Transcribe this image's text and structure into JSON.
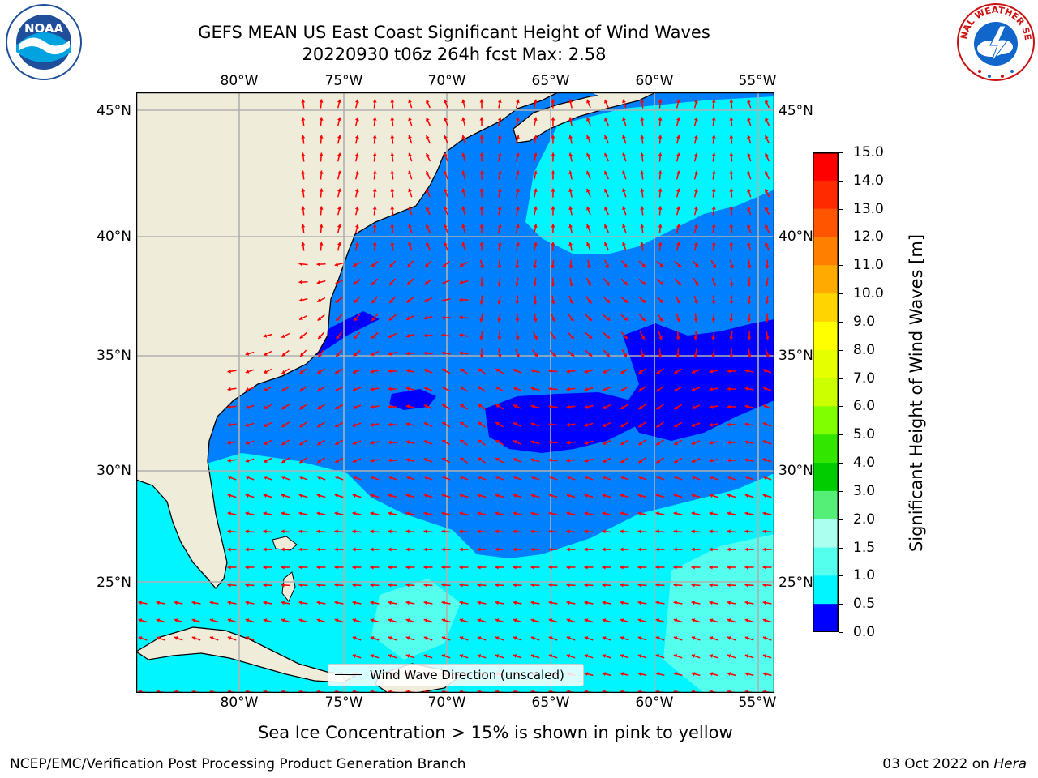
{
  "title": {
    "line1": "GEFS MEAN US East Coast Significant Height of Wind Waves",
    "line2": "20220930 t06z 264h fcst   Max: 2.58"
  },
  "logos": {
    "left": {
      "icon": "noaa-logo",
      "text": "NOAA"
    },
    "right": {
      "icon": "national-weather-service-logo",
      "text": "NATIONAL WEATHER SERVICE"
    }
  },
  "map": {
    "lon_labels": [
      "80°W",
      "75°W",
      "70°W",
      "65°W",
      "60°W",
      "55°W"
    ],
    "lat_labels": [
      "45°N",
      "40°N",
      "35°N",
      "30°N",
      "25°N"
    ],
    "extent": {
      "lon": [
        -85,
        -54.2
      ],
      "lat": [
        20.4,
        46
      ]
    },
    "land_color": "#efedda",
    "grid_color": "#b0b0b0",
    "arrow_color": "#ff0000"
  },
  "legend": {
    "label": "Wind Wave Direction (unscaled)"
  },
  "colorbar": {
    "label": "Significant Height of Wind Waves [m]",
    "ticks": [
      "15.0",
      "14.0",
      "13.0",
      "12.0",
      "11.0",
      "10.0",
      "9.0",
      "8.0",
      "7.0",
      "6.0",
      "5.0",
      "4.0",
      "3.0",
      "2.0",
      "1.5",
      "1.0",
      "0.5",
      "0.0"
    ],
    "colors": [
      "#ff0000",
      "#ff2a00",
      "#ff5500",
      "#ff8000",
      "#ffaa00",
      "#ffd400",
      "#ffff00",
      "#e6ff00",
      "#ccff00",
      "#80ff00",
      "#33e600",
      "#00cc00",
      "#55ee77",
      "#aaffee",
      "#55ffee",
      "#00f5ff",
      "#0088ff",
      "#0000ff"
    ]
  },
  "notes": {
    "sea_ice": "Sea Ice Concentration > 15% is shown in pink to yellow"
  },
  "footer": {
    "left": "NCEP/EMC/Verification Post Processing Product Generation Branch",
    "date": "03 Oct 2022 on ",
    "machine": "Hera"
  }
}
